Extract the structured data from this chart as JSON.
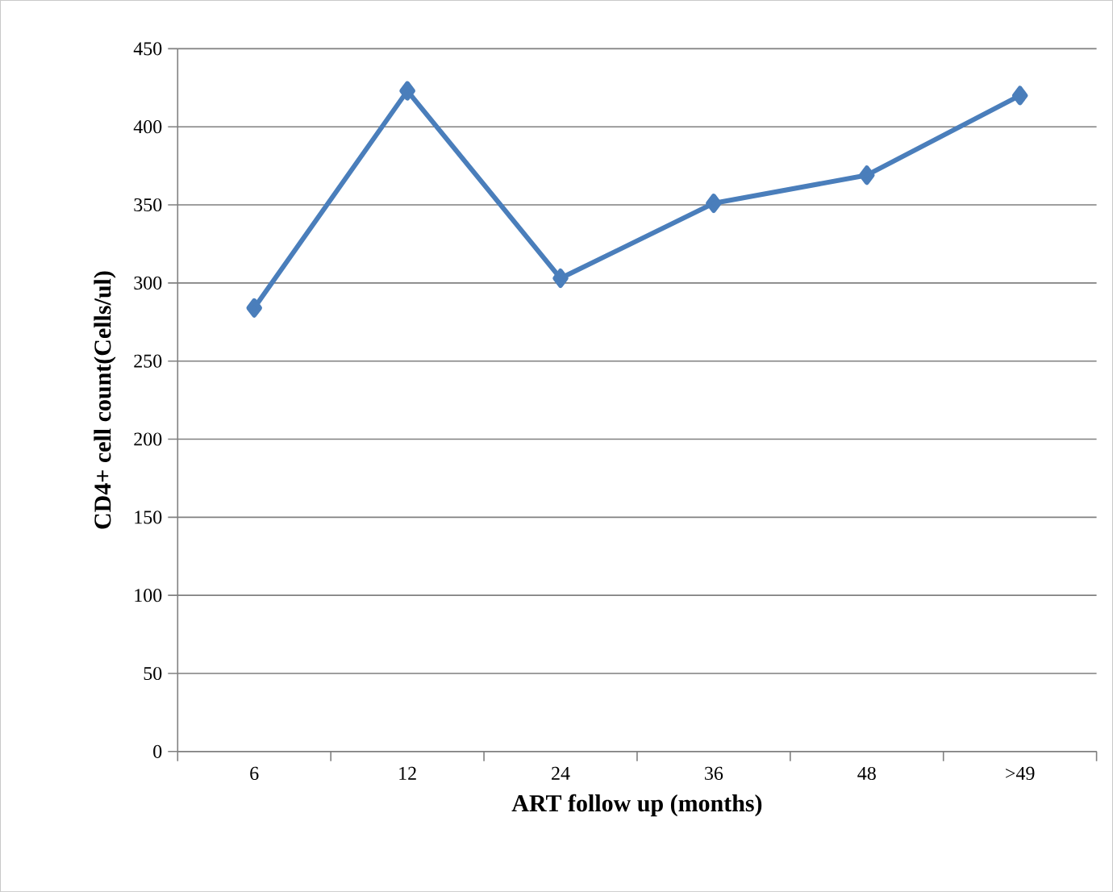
{
  "chart_data": {
    "type": "line",
    "xlabel": "ART follow up (months)",
    "ylabel": "CD4+ cell count(Cells/ul)",
    "categories": [
      "6",
      "12",
      "24",
      "36",
      "48",
      ">49"
    ],
    "series": [
      {
        "color": "#4a7ebb",
        "values": [
          284,
          423,
          303,
          351,
          369,
          420
        ]
      }
    ],
    "ylim": [
      0,
      450
    ],
    "yticks": [
      0,
      50,
      100,
      150,
      200,
      250,
      300,
      350,
      400,
      450
    ],
    "grid": "y",
    "marker": "diamond",
    "line_style": "solid"
  }
}
